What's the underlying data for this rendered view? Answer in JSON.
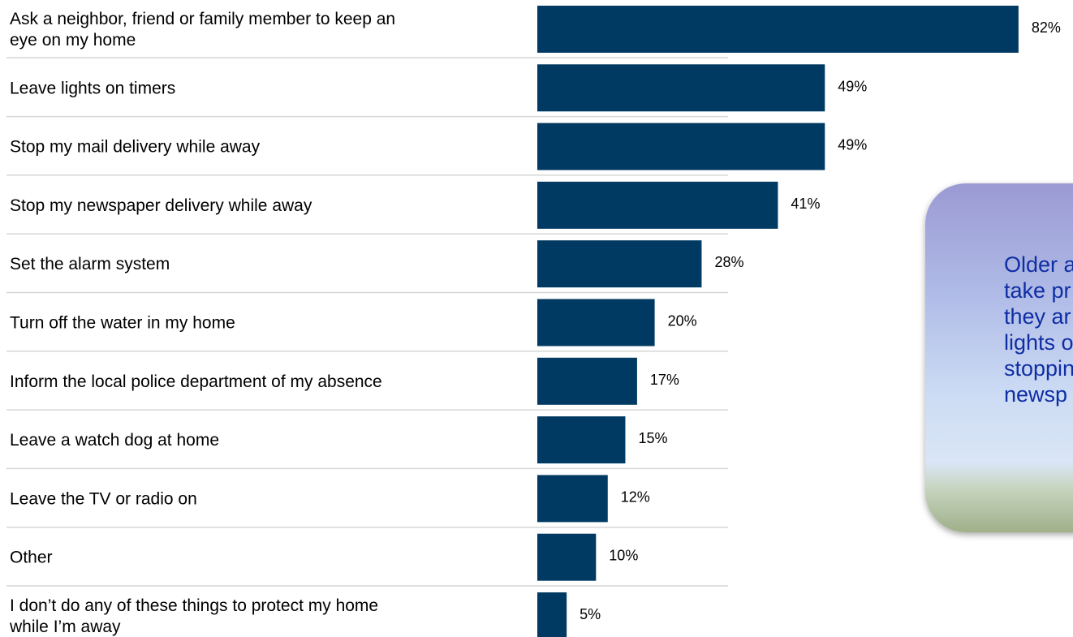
{
  "chart_data": {
    "type": "bar",
    "orientation": "horizontal",
    "categories": [
      "Ask a neighbor, friend or family member to keep an\neye on my home",
      "Leave lights on timers",
      "Stop my mail delivery while away",
      "Stop my newspaper delivery while away",
      "Set the alarm system",
      "Turn off the water in my home",
      "Inform the local police department of my absence",
      "Leave a watch dog at home",
      "Leave the TV or radio on",
      "Other",
      "I don’t do any of these things to protect my home\nwhile I’m away"
    ],
    "values": [
      82,
      49,
      49,
      41,
      28,
      20,
      17,
      15,
      12,
      10,
      5
    ],
    "value_labels": [
      "82%",
      "49%",
      "49%",
      "41%",
      "28%",
      "20%",
      "17%",
      "15%",
      "12%",
      "10%",
      "5%"
    ],
    "title": "",
    "xlabel": "",
    "ylabel": "",
    "xlim": [
      0,
      100
    ],
    "bar_color": "#003a62",
    "grid": false
  },
  "callout": {
    "text": "Older a\ntake pr\nthey ar\nlights o\nstoppin\nnewsp"
  }
}
